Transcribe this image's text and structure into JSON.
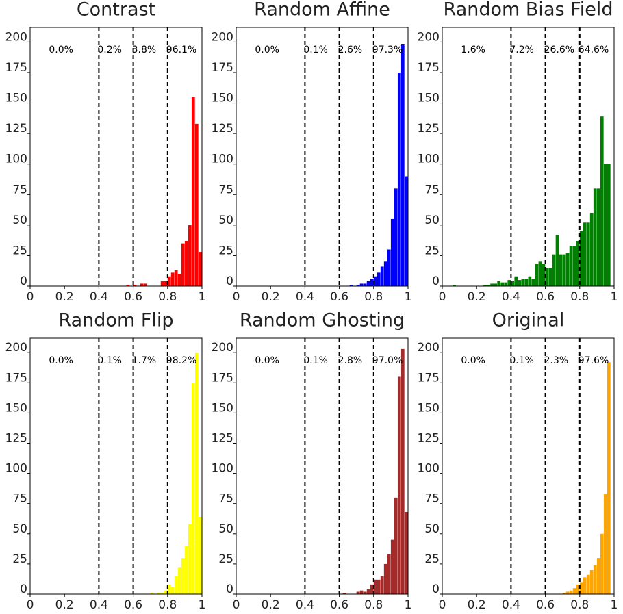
{
  "chart_data": [
    {
      "type": "histogram",
      "title": "Contrast",
      "color": "#ff0000",
      "bins": [
        0.5,
        0.52,
        0.54,
        0.56,
        0.58,
        0.6,
        0.62,
        0.64,
        0.66,
        0.68,
        0.7,
        0.72,
        0.74,
        0.76,
        0.78,
        0.8,
        0.82,
        0.84,
        0.86,
        0.88,
        0.9,
        0.92,
        0.94,
        0.96,
        0.98,
        1
      ],
      "values": [
        0,
        0,
        0,
        1,
        0,
        1,
        0,
        2,
        2,
        0,
        0,
        0,
        0,
        4,
        4,
        8,
        11,
        13,
        10,
        35,
        37,
        50,
        155,
        133,
        28
      ],
      "xlim": [
        0,
        1
      ],
      "xticks": [
        0,
        0.2,
        0.4,
        0.6,
        0.8,
        1
      ],
      "ylim": [
        0,
        212
      ],
      "yticks": [
        0,
        25,
        50,
        75,
        100,
        125,
        150,
        175,
        200
      ],
      "thresholds": [
        0.4,
        0.6,
        0.8
      ],
      "region_labels": [
        "0.0%",
        "0.2%",
        "3.8%",
        "96.1%"
      ]
    },
    {
      "type": "histogram",
      "title": "Random Affine",
      "color": "#0000ff",
      "bins": [
        0.5,
        0.52,
        0.54,
        0.56,
        0.58,
        0.6,
        0.62,
        0.64,
        0.66,
        0.68,
        0.7,
        0.72,
        0.74,
        0.76,
        0.78,
        0.8,
        0.82,
        0.84,
        0.86,
        0.88,
        0.9,
        0.92,
        0.94,
        0.96,
        0.98,
        1
      ],
      "values": [
        0,
        0,
        0,
        0,
        0,
        0,
        0,
        0,
        1,
        0,
        1,
        2,
        2,
        4,
        6,
        8,
        11,
        16,
        20,
        30,
        55,
        80,
        175,
        198,
        90
      ],
      "xlim": [
        0,
        1
      ],
      "xticks": [
        0,
        0.2,
        0.4,
        0.6,
        0.8,
        1
      ],
      "ylim": [
        0,
        212
      ],
      "yticks": [
        0,
        25,
        50,
        75,
        100,
        125,
        150,
        175,
        200
      ],
      "thresholds": [
        0.4,
        0.6,
        0.8
      ],
      "region_labels": [
        "0.0%",
        "0.1%",
        "2.6%",
        "97.3%"
      ]
    },
    {
      "type": "histogram",
      "title": "Random Bias Field",
      "color": "#008000",
      "bins": [
        0.04,
        0.06,
        0.08,
        0.1,
        0.12,
        0.14,
        0.16,
        0.18,
        0.2,
        0.22,
        0.24,
        0.26,
        0.28,
        0.3,
        0.32,
        0.34,
        0.36,
        0.38,
        0.4,
        0.42,
        0.44,
        0.46,
        0.48,
        0.5,
        0.52,
        0.54,
        0.56,
        0.58,
        0.6,
        0.62,
        0.64,
        0.66,
        0.68,
        0.7,
        0.72,
        0.74,
        0.76,
        0.78,
        0.8,
        0.82,
        0.84,
        0.86,
        0.88,
        0.9,
        0.92,
        0.94,
        0.96,
        0.98,
        1
      ],
      "values": [
        0,
        1,
        0,
        0,
        0,
        0,
        0,
        0,
        0,
        0,
        1,
        1,
        2,
        2,
        4,
        3,
        3,
        5,
        4,
        8,
        5,
        6,
        6,
        8,
        6,
        18,
        20,
        18,
        15,
        15,
        26,
        42,
        26,
        26,
        27,
        33,
        33,
        37,
        45,
        52,
        52,
        60,
        80,
        80,
        139,
        100,
        100,
        0
      ],
      "xlim": [
        0,
        1
      ],
      "xticks": [
        0,
        0.2,
        0.4,
        0.6,
        0.8,
        1
      ],
      "ylim": [
        0,
        212
      ],
      "yticks": [
        0,
        25,
        50,
        75,
        100,
        125,
        150,
        175,
        200
      ],
      "thresholds": [
        0.4,
        0.6,
        0.8
      ],
      "region_labels": [
        "1.6%",
        "7.2%",
        "26.6%",
        "64.6%"
      ]
    },
    {
      "type": "histogram",
      "title": "Random Flip",
      "color": "#ffff00",
      "bins": [
        0.5,
        0.52,
        0.54,
        0.56,
        0.58,
        0.6,
        0.62,
        0.64,
        0.66,
        0.68,
        0.7,
        0.72,
        0.74,
        0.76,
        0.78,
        0.8,
        0.82,
        0.84,
        0.86,
        0.88,
        0.9,
        0.92,
        0.94,
        0.96,
        0.98,
        1
      ],
      "values": [
        0,
        0,
        0,
        0,
        0,
        0,
        0,
        0,
        0,
        0,
        1,
        0,
        1,
        1,
        3,
        8,
        6,
        15,
        22,
        30,
        40,
        58,
        175,
        200,
        64
      ],
      "xlim": [
        0,
        1
      ],
      "xticks": [
        0,
        0.2,
        0.4,
        0.6,
        0.8,
        1
      ],
      "ylim": [
        0,
        212
      ],
      "yticks": [
        0,
        25,
        50,
        75,
        100,
        125,
        150,
        175,
        200
      ],
      "thresholds": [
        0.4,
        0.6,
        0.8
      ],
      "region_labels": [
        "0.0%",
        "0.1%",
        "1.7%",
        "98.2%"
      ]
    },
    {
      "type": "histogram",
      "title": "Random Ghosting",
      "color": "#a52a2a",
      "bins": [
        0.5,
        0.52,
        0.54,
        0.56,
        0.58,
        0.6,
        0.62,
        0.64,
        0.66,
        0.68,
        0.7,
        0.72,
        0.74,
        0.76,
        0.78,
        0.8,
        0.82,
        0.84,
        0.86,
        0.88,
        0.9,
        0.92,
        0.94,
        0.96,
        0.98,
        1
      ],
      "values": [
        0,
        0,
        0,
        0,
        0,
        0,
        1,
        0,
        0,
        0,
        2,
        3,
        2,
        4,
        8,
        12,
        12,
        15,
        25,
        33,
        45,
        80,
        180,
        203,
        68
      ],
      "xlim": [
        0,
        1
      ],
      "xticks": [
        0,
        0.2,
        0.4,
        0.6,
        0.8,
        1
      ],
      "ylim": [
        0,
        212
      ],
      "yticks": [
        0,
        25,
        50,
        75,
        100,
        125,
        150,
        175,
        200
      ],
      "thresholds": [
        0.4,
        0.6,
        0.8
      ],
      "region_labels": [
        "0.0%",
        "0.1%",
        "2.8%",
        "97.0%"
      ]
    },
    {
      "type": "histogram",
      "title": "Original",
      "color": "#ffa500",
      "bins": [
        0.5,
        0.52,
        0.54,
        0.56,
        0.58,
        0.6,
        0.62,
        0.64,
        0.66,
        0.68,
        0.7,
        0.72,
        0.74,
        0.76,
        0.78,
        0.8,
        0.82,
        0.84,
        0.86,
        0.88,
        0.9,
        0.92,
        0.94,
        0.96,
        0.98,
        1
      ],
      "values": [
        0,
        0,
        0,
        0,
        0,
        0,
        0,
        0,
        0,
        0,
        1,
        2,
        3,
        5,
        8,
        10,
        14,
        16,
        20,
        24,
        30,
        50,
        83,
        192,
        0
      ],
      "xlim": [
        0,
        1
      ],
      "xticks": [
        0,
        0.2,
        0.4,
        0.6,
        0.8,
        1
      ],
      "ylim": [
        0,
        212
      ],
      "yticks": [
        0,
        25,
        50,
        75,
        100,
        125,
        150,
        175,
        200
      ],
      "thresholds": [
        0.4,
        0.6,
        0.8
      ],
      "region_labels": [
        "0.0%",
        "0.1%",
        "2.3%",
        "97.6%"
      ]
    }
  ]
}
